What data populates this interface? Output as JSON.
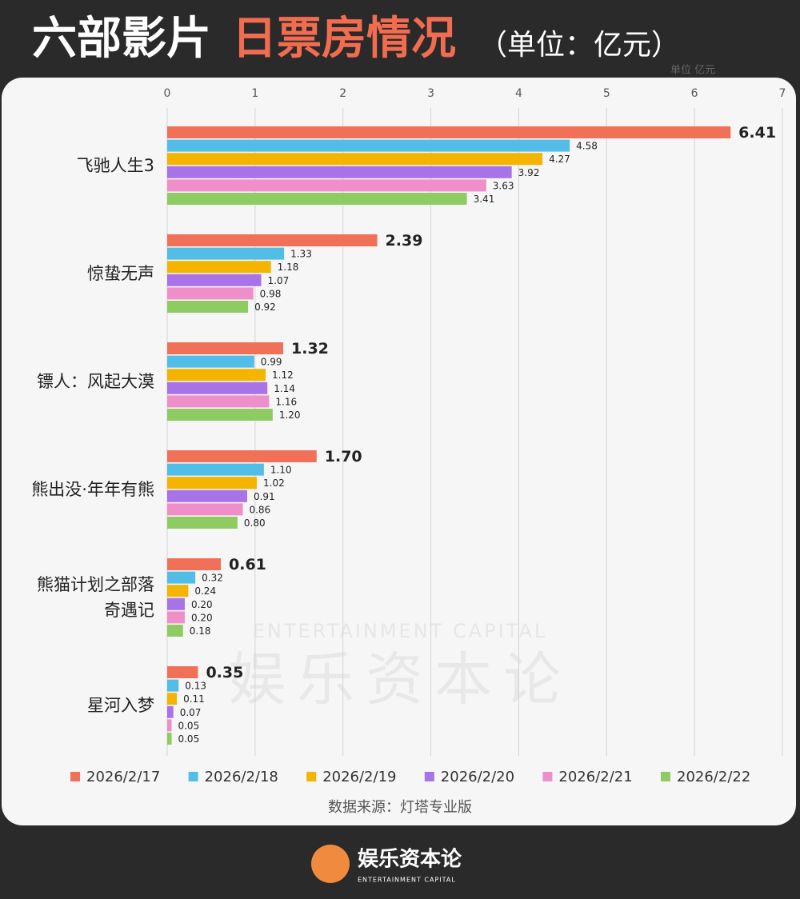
{
  "chart_data": {
    "type": "bar",
    "orientation": "horizontal",
    "title_part1": "六部影片",
    "title_part2": "日票房情况",
    "title_unit": "（单位：亿元）",
    "unit_note": "单位 亿元",
    "categories": [
      "飞驰人生3",
      "惊蛰无声",
      "镖人：风起大漠",
      "熊出没·年年有熊",
      "熊猫计划之部落\n奇遇记",
      "星河入梦"
    ],
    "series": [
      {
        "name": "2026/2/17",
        "color": "#f07058",
        "values": [
          6.41,
          2.39,
          1.32,
          1.7,
          0.61,
          0.35
        ],
        "value_labels": [
          "6.41",
          "2.39",
          "1.32",
          "1.70",
          "0.61",
          "0.35"
        ]
      },
      {
        "name": "2026/2/18",
        "color": "#52bde6",
        "values": [
          4.58,
          1.33,
          0.99,
          1.1,
          0.32,
          0.13
        ],
        "value_labels": [
          "4.58",
          "1.33",
          "0.99",
          "1.10",
          "0.32",
          "0.13"
        ]
      },
      {
        "name": "2026/2/19",
        "color": "#f4b400",
        "values": [
          4.27,
          1.18,
          1.12,
          1.02,
          0.24,
          0.11
        ],
        "value_labels": [
          "4.27",
          "1.18",
          "1.12",
          "1.02",
          "0.24",
          "0.11"
        ]
      },
      {
        "name": "2026/2/20",
        "color": "#a872e8",
        "values": [
          3.92,
          1.07,
          1.14,
          0.91,
          0.2,
          0.07
        ],
        "value_labels": [
          "3.92",
          "1.07",
          "1.14",
          "0.91",
          "0.20",
          "0.07"
        ]
      },
      {
        "name": "2026/2/21",
        "color": "#ee8fca",
        "values": [
          3.63,
          0.98,
          1.16,
          0.86,
          0.2,
          0.05
        ],
        "value_labels": [
          "3.63",
          "0.98",
          "1.16",
          "0.86",
          "0.20",
          "0.05"
        ]
      },
      {
        "name": "2026/2/22",
        "color": "#8ecb62",
        "values": [
          3.41,
          0.92,
          1.2,
          0.8,
          0.18,
          0.05
        ],
        "value_labels": [
          "3.41",
          "0.92",
          "1.20",
          "0.80",
          "0.18",
          "0.05"
        ]
      }
    ],
    "xlim": [
      0,
      7
    ],
    "xticks": [
      0,
      1,
      2,
      3,
      4,
      5,
      6,
      7
    ],
    "grid": true,
    "legend": "bottom",
    "source": "数据来源：灯塔专业版",
    "watermark_en": "ENTERTAINMENT CAPITAL",
    "watermark_cn": "娱乐资本论",
    "footer_brand": "娱乐资本论",
    "footer_brand_en": "ENTERTAINMENT CAPITAL"
  }
}
